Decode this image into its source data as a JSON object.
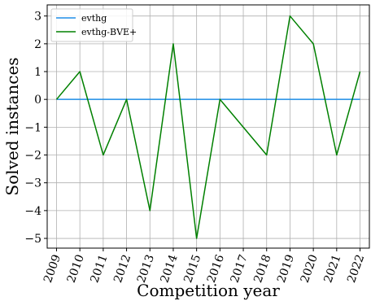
{
  "chart_data": {
    "type": "line",
    "title": "",
    "xlabel": "Competition year",
    "ylabel": "Solved instances",
    "x": [
      "2009",
      "2010",
      "2011",
      "2012",
      "2013",
      "2014",
      "2015",
      "2016",
      "2017",
      "2018",
      "2019",
      "2020",
      "2021",
      "2022"
    ],
    "xlim": [
      2008.6,
      2022.4
    ],
    "ylim": [
      -5.35,
      3.4
    ],
    "yticks": [
      3,
      2,
      1,
      0,
      -1,
      -2,
      -3,
      -4,
      -5
    ],
    "ytick_labels": [
      "3",
      "2",
      "1",
      "0",
      "−1",
      "−2",
      "−3",
      "−4",
      "−5"
    ],
    "grid": true,
    "legend_position": "top-left",
    "series": [
      {
        "name": "evthg",
        "color": "#1f8ee8",
        "values": [
          0,
          0,
          0,
          0,
          0,
          0,
          0,
          0,
          0,
          0,
          0,
          0,
          0,
          0
        ]
      },
      {
        "name": "evthg-BVE+",
        "color": "#008000",
        "values": [
          0,
          1,
          -2,
          0,
          -4,
          2,
          -5,
          0,
          -1,
          -2,
          3,
          2,
          -2,
          1
        ]
      }
    ]
  }
}
